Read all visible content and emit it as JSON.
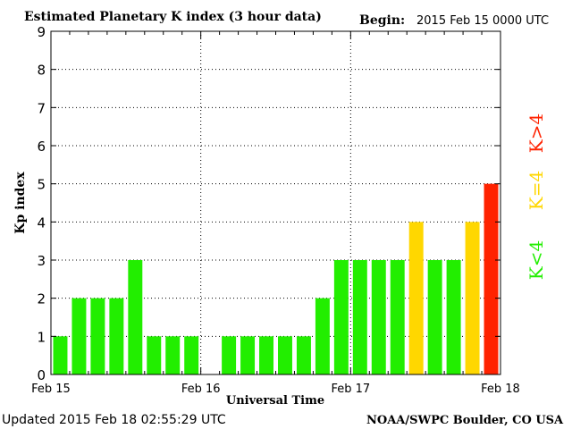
{
  "header": {
    "title": "Estimated Planetary K index (3 hour data)",
    "begin_label": "Begin:",
    "begin_value": "2015 Feb 15 0000 UTC"
  },
  "footer": {
    "updated": "Updated 2015 Feb 18 02:55:29 UTC",
    "credit": "NOAA/SWPC Boulder, CO USA"
  },
  "legend": {
    "low": "K<4",
    "mid": "K=4",
    "high": "K>4"
  },
  "colors": {
    "low": "#22ee00",
    "mid": "#ffd700",
    "high": "#ff2200"
  },
  "chart_data": {
    "type": "bar",
    "title": "Estimated Planetary K index (3 hour data)",
    "xlabel": "Universal Time",
    "ylabel": "Kp index",
    "ylim": [
      0,
      9
    ],
    "yticks": [
      0,
      1,
      2,
      3,
      4,
      5,
      6,
      7,
      8,
      9
    ],
    "xtick_labels": [
      "Feb 15",
      "Feb 16",
      "Feb 17",
      "Feb 18"
    ],
    "grid": true,
    "bars_per_day": 8,
    "values": [
      1,
      2,
      2,
      2,
      3,
      1,
      1,
      1,
      null,
      1,
      1,
      1,
      1,
      1,
      2,
      3,
      3,
      3,
      3,
      4,
      3,
      3,
      4,
      5
    ]
  }
}
